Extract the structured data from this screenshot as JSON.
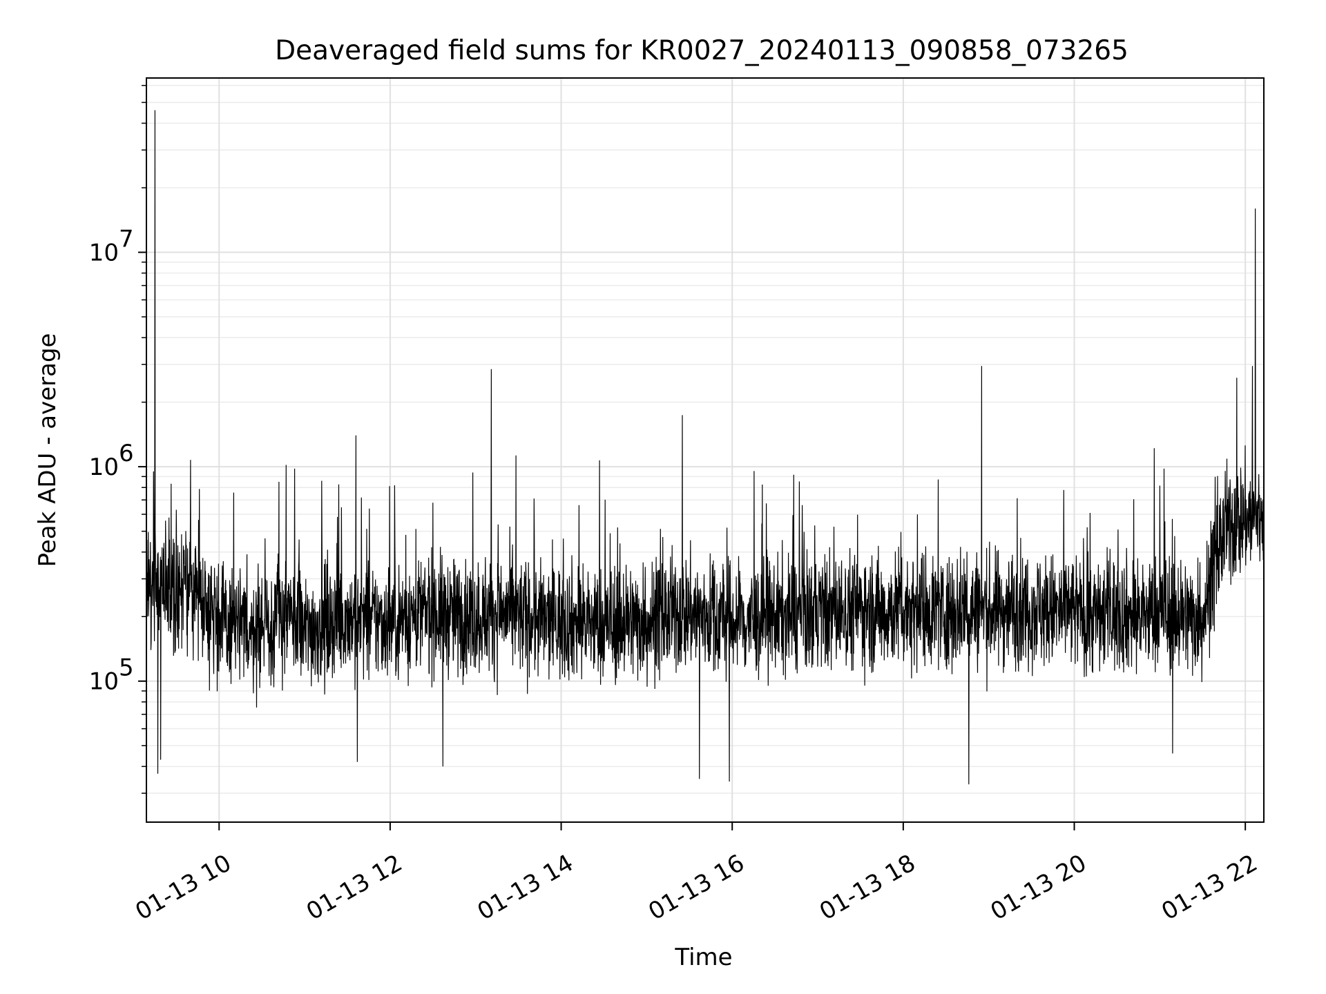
{
  "chart_data": {
    "type": "line",
    "title": "Deaveraged field sums for KR0027_20240113_090858_073265",
    "xlabel": "Time",
    "ylabel": "Peak ADU - average",
    "y_scale": "log",
    "xlim": [
      "01-13 09:09",
      "01-13 22:13"
    ],
    "ylim": [
      22000,
      65000000
    ],
    "grid": true,
    "x_ticks": [
      "01-13 10",
      "01-13 12",
      "01-13 14",
      "01-13 16",
      "01-13 18",
      "01-13 20",
      "01-13 22"
    ],
    "y_ticks": [
      {
        "base": "10",
        "exp": "5",
        "value": 100000
      },
      {
        "base": "10",
        "exp": "6",
        "value": 1000000
      },
      {
        "base": "10",
        "exp": "7",
        "value": 10000000
      }
    ],
    "series": [
      {
        "color": "#000000",
        "x": [
          "01-13 09:09",
          "01-13 09:15",
          "01-13 09:30",
          "01-13 09:45",
          "01-13 10:00",
          "01-13 10:15",
          "01-13 10:30",
          "01-13 10:45",
          "01-13 11:00",
          "01-13 11:15",
          "01-13 11:30",
          "01-13 11:45",
          "01-13 12:00",
          "01-13 12:15",
          "01-13 12:30",
          "01-13 12:45",
          "01-13 13:00",
          "01-13 13:15",
          "01-13 13:30",
          "01-13 13:45",
          "01-13 14:00",
          "01-13 14:15",
          "01-13 14:30",
          "01-13 14:45",
          "01-13 15:00",
          "01-13 15:15",
          "01-13 15:30",
          "01-13 15:45",
          "01-13 16:00",
          "01-13 16:15",
          "01-13 16:30",
          "01-13 16:45",
          "01-13 17:00",
          "01-13 17:15",
          "01-13 17:30",
          "01-13 17:45",
          "01-13 18:00",
          "01-13 18:15",
          "01-13 18:30",
          "01-13 18:45",
          "01-13 19:00",
          "01-13 19:15",
          "01-13 19:30",
          "01-13 19:45",
          "01-13 20:00",
          "01-13 20:15",
          "01-13 20:30",
          "01-13 20:45",
          "01-13 21:00",
          "01-13 21:15",
          "01-13 21:30",
          "01-13 21:45",
          "01-13 22:00",
          "01-13 22:13"
        ],
        "y": [
          250000,
          300000,
          260000,
          280000,
          190000,
          170000,
          180000,
          200000,
          170000,
          190000,
          200000,
          190000,
          190000,
          200000,
          210000,
          200000,
          200000,
          210000,
          200000,
          190000,
          190000,
          190000,
          180000,
          190000,
          190000,
          200000,
          210000,
          200000,
          190000,
          190000,
          200000,
          200000,
          210000,
          210000,
          220000,
          210000,
          220000,
          220000,
          210000,
          220000,
          210000,
          220000,
          220000,
          210000,
          210000,
          200000,
          210000,
          200000,
          210000,
          200000,
          200000,
          500000,
          580000,
          600000
        ],
        "peaks": [
          {
            "x": "01-13 09:15",
            "y": 46000000
          },
          {
            "x": "01-13 09:14",
            "y": 950000
          },
          {
            "x": "01-13 09:30",
            "y": 630000
          },
          {
            "x": "01-13 10:42",
            "y": 850000
          },
          {
            "x": "01-13 10:47",
            "y": 1020000
          },
          {
            "x": "01-13 10:53",
            "y": 980000
          },
          {
            "x": "01-13 11:12",
            "y": 860000
          },
          {
            "x": "01-13 11:36",
            "y": 1400000
          },
          {
            "x": "01-13 12:30",
            "y": 680000
          },
          {
            "x": "01-13 12:58",
            "y": 940000
          },
          {
            "x": "01-13 13:11",
            "y": 2850000
          },
          {
            "x": "01-13 13:41",
            "y": 710000
          },
          {
            "x": "01-13 15:25",
            "y": 1740000
          },
          {
            "x": "01-13 18:55",
            "y": 2950000
          },
          {
            "x": "01-13 21:03",
            "y": 980000
          },
          {
            "x": "01-13 21:54",
            "y": 2600000
          },
          {
            "x": "01-13 22:05",
            "y": 2950000
          },
          {
            "x": "01-13 22:07",
            "y": 16000000
          }
        ],
        "dips": [
          {
            "x": "01-13 09:17",
            "y": 37000
          },
          {
            "x": "01-13 09:19",
            "y": 43000
          },
          {
            "x": "01-13 11:37",
            "y": 42000
          },
          {
            "x": "01-13 12:37",
            "y": 40000
          },
          {
            "x": "01-13 15:37",
            "y": 35000
          },
          {
            "x": "01-13 15:58",
            "y": 34000
          },
          {
            "x": "01-13 18:46",
            "y": 33000
          },
          {
            "x": "01-13 21:09",
            "y": 46000
          }
        ]
      }
    ]
  }
}
